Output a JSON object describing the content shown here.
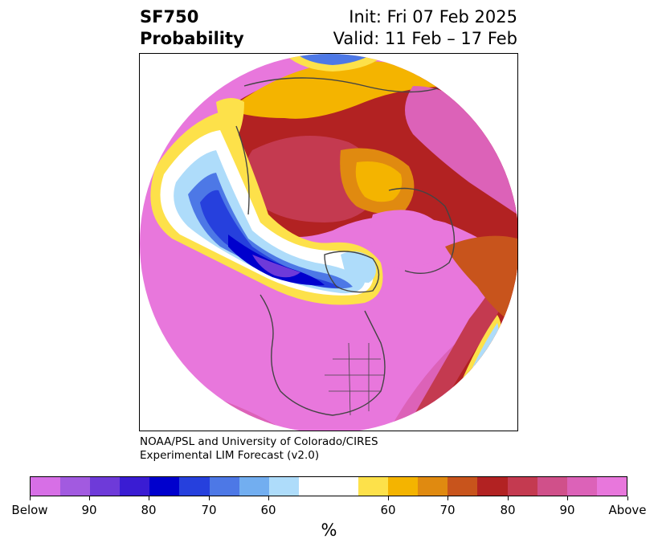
{
  "header": {
    "variable": "SF750",
    "product": "Probability",
    "init": "Init: Fri 07 Feb 2025",
    "valid": "Valid: 11 Feb – 17 Feb"
  },
  "credit": {
    "line1": "NOAA/PSL and University of Colorado/CIRES",
    "line2": "Experimental LIM Forecast (v2.0)"
  },
  "colorbar": {
    "unit": "%",
    "colors": [
      "#d76fe6",
      "#a25ae0",
      "#6e3ad9",
      "#3a1cd3",
      "#0000cd",
      "#2640dd",
      "#4d78e6",
      "#72aef0",
      "#aedcfa",
      "#ffffff",
      "#ffffff",
      "#fde14a",
      "#f4b400",
      "#e08a10",
      "#c8541c",
      "#b22222",
      "#c43a50",
      "#d0508a",
      "#dc62b8",
      "#e877dc"
    ],
    "tick_labels": [
      "Below",
      "90",
      "80",
      "70",
      "60",
      "60",
      "70",
      "80",
      "90",
      "Above"
    ]
  },
  "map": {
    "projection": "north-polar-stereographic",
    "fill_colors": {
      "above_strong": "#e877dc",
      "above_high": "#dc62b8",
      "above_80": "#c43a50",
      "above_70": "#b22222",
      "above_60": "#e08a10",
      "above_low": "#f4b400",
      "above_min": "#fde14a",
      "below_min": "#aedcfa",
      "below_low": "#4d78e6",
      "below_70": "#2640dd",
      "below_80": "#0000cd",
      "below_high": "#6e3ad9",
      "coast": "#444444"
    }
  }
}
